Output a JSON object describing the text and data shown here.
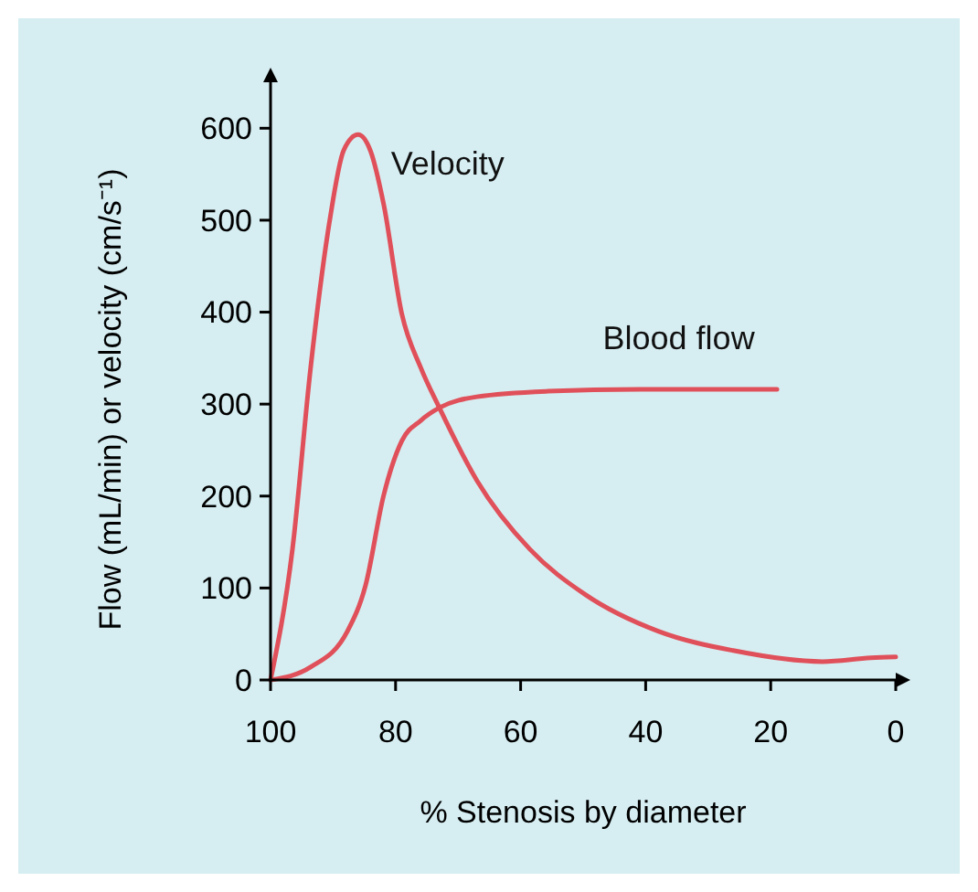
{
  "chart_data": {
    "type": "line",
    "xlabel": "% Stenosis by diameter",
    "ylabel": "Flow (mL/min) or velocity (cm/s⁻¹)",
    "xlim": [
      100,
      0
    ],
    "ylim": [
      0,
      650
    ],
    "xticks": [
      100,
      80,
      60,
      40,
      20,
      0
    ],
    "yticks": [
      0,
      100,
      200,
      300,
      400,
      500,
      600
    ],
    "line_style": "solid",
    "series": [
      {
        "name": "Velocity",
        "color": "#e0505a",
        "x": [
          100,
          96.5,
          93.6,
          90.6,
          88.3,
          86,
          84,
          81.9,
          79,
          76,
          73,
          67,
          58.5,
          49.7,
          38,
          26,
          11.7,
          4,
          0
        ],
        "values": [
          0,
          142,
          339,
          497,
          576,
          593,
          575,
          517,
          398,
          340,
          296,
          217,
          142,
          93,
          53,
          32,
          20,
          24,
          25
        ]
      },
      {
        "name": "Blood flow",
        "color": "#e0505a",
        "x": [
          100,
          93.6,
          87.7,
          84.8,
          81.9,
          79,
          76,
          73,
          67,
          55.6,
          41,
          19
        ],
        "values": [
          0,
          14,
          53,
          103,
          201,
          260,
          282,
          296,
          308,
          314,
          316,
          316
        ]
      }
    ]
  }
}
